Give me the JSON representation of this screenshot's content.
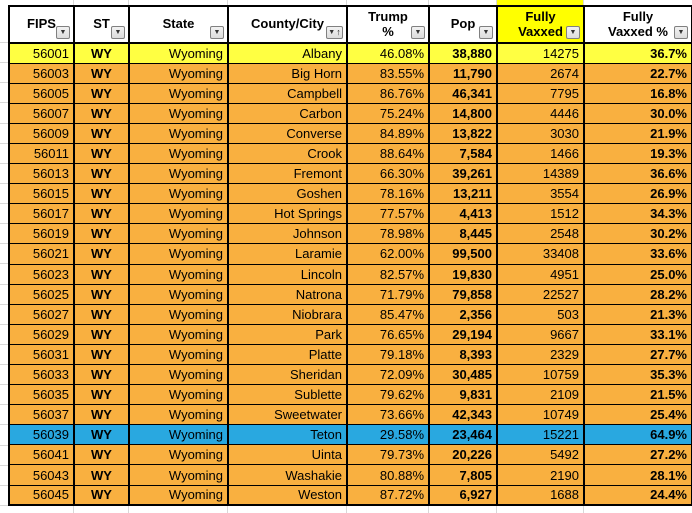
{
  "table": {
    "columns": [
      {
        "key": "fips",
        "label": "FIPS",
        "icon": "filter-dropdown-icon"
      },
      {
        "key": "st",
        "label": "ST",
        "icon": "filter-dropdown-icon"
      },
      {
        "key": "state",
        "label": "State",
        "icon": "filter-dropdown-icon"
      },
      {
        "key": "county",
        "label": "County/City",
        "icon": "filter-dropdown-sorted-icon",
        "sorted": "ascending"
      },
      {
        "key": "trump_pct",
        "label": "Trump\n%",
        "icon": "filter-dropdown-icon"
      },
      {
        "key": "pop",
        "label": "Pop",
        "icon": "filter-dropdown-icon"
      },
      {
        "key": "fully_vaxxed",
        "label": "Fully\nVaxxed",
        "icon": "filter-dropdown-icon",
        "highlighted": true
      },
      {
        "key": "fully_vaxxed_pct",
        "label": "Fully\nVaxxed %",
        "icon": "filter-dropdown-icon"
      }
    ],
    "rows": [
      {
        "fips": "56001",
        "st": "WY",
        "state": "Wyoming",
        "county": "Albany",
        "trump_pct": "46.08%",
        "pop": "38,880",
        "fully_vaxxed": "14275",
        "fully_vaxxed_pct": "36.7%",
        "highlight": "yellow"
      },
      {
        "fips": "56003",
        "st": "WY",
        "state": "Wyoming",
        "county": "Big Horn",
        "trump_pct": "83.55%",
        "pop": "11,790",
        "fully_vaxxed": "2674",
        "fully_vaxxed_pct": "22.7%",
        "highlight": ""
      },
      {
        "fips": "56005",
        "st": "WY",
        "state": "Wyoming",
        "county": "Campbell",
        "trump_pct": "86.76%",
        "pop": "46,341",
        "fully_vaxxed": "7795",
        "fully_vaxxed_pct": "16.8%",
        "highlight": ""
      },
      {
        "fips": "56007",
        "st": "WY",
        "state": "Wyoming",
        "county": "Carbon",
        "trump_pct": "75.24%",
        "pop": "14,800",
        "fully_vaxxed": "4446",
        "fully_vaxxed_pct": "30.0%",
        "highlight": ""
      },
      {
        "fips": "56009",
        "st": "WY",
        "state": "Wyoming",
        "county": "Converse",
        "trump_pct": "84.89%",
        "pop": "13,822",
        "fully_vaxxed": "3030",
        "fully_vaxxed_pct": "21.9%",
        "highlight": ""
      },
      {
        "fips": "56011",
        "st": "WY",
        "state": "Wyoming",
        "county": "Crook",
        "trump_pct": "88.64%",
        "pop": "7,584",
        "fully_vaxxed": "1466",
        "fully_vaxxed_pct": "19.3%",
        "highlight": ""
      },
      {
        "fips": "56013",
        "st": "WY",
        "state": "Wyoming",
        "county": "Fremont",
        "trump_pct": "66.30%",
        "pop": "39,261",
        "fully_vaxxed": "14389",
        "fully_vaxxed_pct": "36.6%",
        "highlight": ""
      },
      {
        "fips": "56015",
        "st": "WY",
        "state": "Wyoming",
        "county": "Goshen",
        "trump_pct": "78.16%",
        "pop": "13,211",
        "fully_vaxxed": "3554",
        "fully_vaxxed_pct": "26.9%",
        "highlight": ""
      },
      {
        "fips": "56017",
        "st": "WY",
        "state": "Wyoming",
        "county": "Hot Springs",
        "trump_pct": "77.57%",
        "pop": "4,413",
        "fully_vaxxed": "1512",
        "fully_vaxxed_pct": "34.3%",
        "highlight": ""
      },
      {
        "fips": "56019",
        "st": "WY",
        "state": "Wyoming",
        "county": "Johnson",
        "trump_pct": "78.98%",
        "pop": "8,445",
        "fully_vaxxed": "2548",
        "fully_vaxxed_pct": "30.2%",
        "highlight": ""
      },
      {
        "fips": "56021",
        "st": "WY",
        "state": "Wyoming",
        "county": "Laramie",
        "trump_pct": "62.00%",
        "pop": "99,500",
        "fully_vaxxed": "33408",
        "fully_vaxxed_pct": "33.6%",
        "highlight": ""
      },
      {
        "fips": "56023",
        "st": "WY",
        "state": "Wyoming",
        "county": "Lincoln",
        "trump_pct": "82.57%",
        "pop": "19,830",
        "fully_vaxxed": "4951",
        "fully_vaxxed_pct": "25.0%",
        "highlight": ""
      },
      {
        "fips": "56025",
        "st": "WY",
        "state": "Wyoming",
        "county": "Natrona",
        "trump_pct": "71.79%",
        "pop": "79,858",
        "fully_vaxxed": "22527",
        "fully_vaxxed_pct": "28.2%",
        "highlight": ""
      },
      {
        "fips": "56027",
        "st": "WY",
        "state": "Wyoming",
        "county": "Niobrara",
        "trump_pct": "85.47%",
        "pop": "2,356",
        "fully_vaxxed": "503",
        "fully_vaxxed_pct": "21.3%",
        "highlight": ""
      },
      {
        "fips": "56029",
        "st": "WY",
        "state": "Wyoming",
        "county": "Park",
        "trump_pct": "76.65%",
        "pop": "29,194",
        "fully_vaxxed": "9667",
        "fully_vaxxed_pct": "33.1%",
        "highlight": ""
      },
      {
        "fips": "56031",
        "st": "WY",
        "state": "Wyoming",
        "county": "Platte",
        "trump_pct": "79.18%",
        "pop": "8,393",
        "fully_vaxxed": "2329",
        "fully_vaxxed_pct": "27.7%",
        "highlight": ""
      },
      {
        "fips": "56033",
        "st": "WY",
        "state": "Wyoming",
        "county": "Sheridan",
        "trump_pct": "72.09%",
        "pop": "30,485",
        "fully_vaxxed": "10759",
        "fully_vaxxed_pct": "35.3%",
        "highlight": ""
      },
      {
        "fips": "56035",
        "st": "WY",
        "state": "Wyoming",
        "county": "Sublette",
        "trump_pct": "79.62%",
        "pop": "9,831",
        "fully_vaxxed": "2109",
        "fully_vaxxed_pct": "21.5%",
        "highlight": ""
      },
      {
        "fips": "56037",
        "st": "WY",
        "state": "Wyoming",
        "county": "Sweetwater",
        "trump_pct": "73.66%",
        "pop": "42,343",
        "fully_vaxxed": "10749",
        "fully_vaxxed_pct": "25.4%",
        "highlight": ""
      },
      {
        "fips": "56039",
        "st": "WY",
        "state": "Wyoming",
        "county": "Teton",
        "trump_pct": "29.58%",
        "pop": "23,464",
        "fully_vaxxed": "15221",
        "fully_vaxxed_pct": "64.9%",
        "highlight": "blue"
      },
      {
        "fips": "56041",
        "st": "WY",
        "state": "Wyoming",
        "county": "Uinta",
        "trump_pct": "79.73%",
        "pop": "20,226",
        "fully_vaxxed": "5492",
        "fully_vaxxed_pct": "27.2%",
        "highlight": ""
      },
      {
        "fips": "56043",
        "st": "WY",
        "state": "Wyoming",
        "county": "Washakie",
        "trump_pct": "80.88%",
        "pop": "7,805",
        "fully_vaxxed": "2190",
        "fully_vaxxed_pct": "28.1%",
        "highlight": ""
      },
      {
        "fips": "56045",
        "st": "WY",
        "state": "Wyoming",
        "county": "Weston",
        "trump_pct": "87.72%",
        "pop": "6,927",
        "fully_vaxxed": "1688",
        "fully_vaxxed_pct": "24.4%",
        "highlight": ""
      }
    ]
  },
  "icons": {
    "dropdown_glyph": "▼",
    "sort_asc_glyph": "↑"
  },
  "colors": {
    "row_orange": "#F9B040",
    "row_yellow": "#FFFF42",
    "row_blue": "#29A8E0",
    "header_highlight_yellow": "#FFFF00",
    "border_black": "#000000",
    "gridline_gray": "#D8D8D8"
  }
}
